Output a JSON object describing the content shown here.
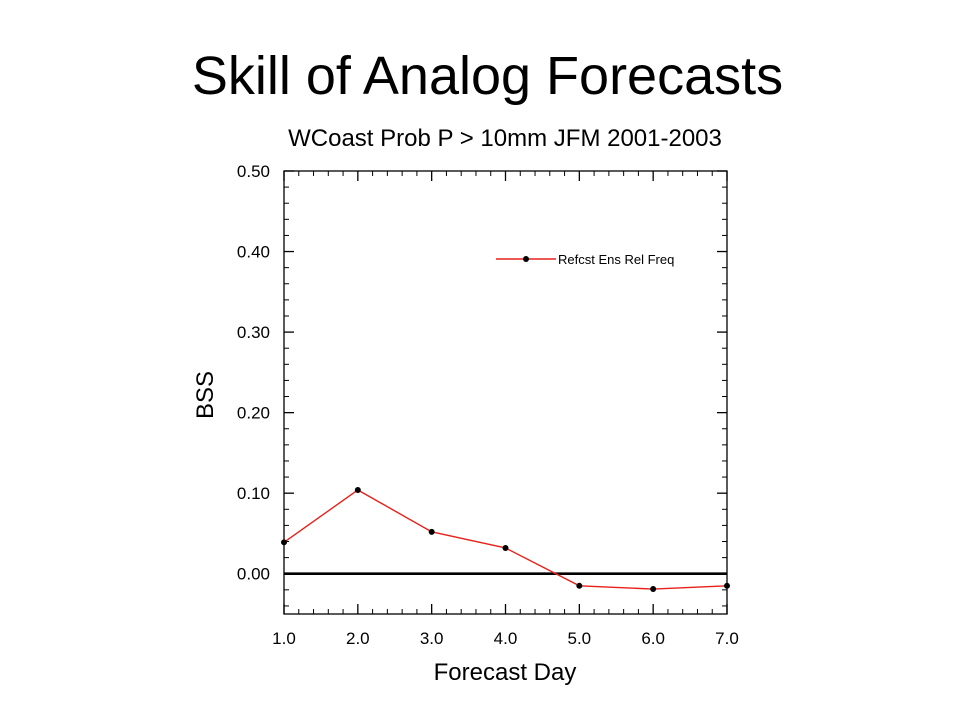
{
  "slide": {
    "title": "Skill of Analog Forecasts"
  },
  "chart_data": {
    "type": "line",
    "title": "WCoast Prob P > 10mm JFM 2001-2003",
    "xlabel": "Forecast Day",
    "ylabel": "BSS",
    "xlim": [
      1.0,
      7.0
    ],
    "ylim": [
      -0.05,
      0.5
    ],
    "x_ticks": [
      1.0,
      2.0,
      3.0,
      4.0,
      5.0,
      6.0,
      7.0
    ],
    "x_tick_labels": [
      "1.0",
      "2.0",
      "3.0",
      "4.0",
      "5.0",
      "6.0",
      "7.0"
    ],
    "y_ticks": [
      0.0,
      0.1,
      0.2,
      0.3,
      0.4,
      0.5
    ],
    "y_tick_labels": [
      "0.00",
      "0.10",
      "0.20",
      "0.30",
      "0.40",
      "0.50"
    ],
    "reference_line": 0.0,
    "grid": false,
    "legend_position": "top-right",
    "series": [
      {
        "name": "Refcst Ens Rel Freq",
        "color": "#e8201a",
        "marker": "dot",
        "x": [
          1.0,
          2.0,
          3.0,
          4.0,
          5.0,
          6.0,
          7.0
        ],
        "y": [
          0.039,
          0.104,
          0.052,
          0.032,
          -0.015,
          -0.019,
          -0.015
        ]
      }
    ]
  }
}
